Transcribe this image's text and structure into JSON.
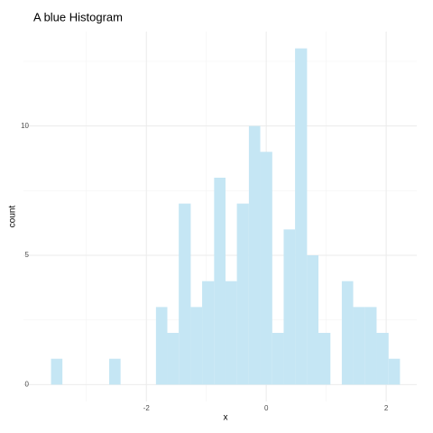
{
  "chart_data": {
    "type": "histogram",
    "title": "A blue Histogram",
    "x_label": "x",
    "y_label": "count",
    "bins": [
      -3.59,
      -3.4,
      -3.2,
      -3.01,
      -2.81,
      -2.62,
      -2.43,
      -2.23,
      -2.04,
      -1.84,
      -1.65,
      -1.46,
      -1.26,
      -1.07,
      -0.87,
      -0.68,
      -0.49,
      -0.29,
      -0.1,
      0.1,
      0.29,
      0.48,
      0.68,
      0.87,
      1.07,
      1.26,
      1.45,
      1.65,
      1.84,
      2.04,
      2.23
    ],
    "values": [
      1,
      0,
      0,
      0,
      0,
      1,
      0,
      0,
      0,
      3,
      2,
      7,
      3,
      4,
      8,
      4,
      7,
      10,
      9,
      2,
      6,
      13,
      5,
      2,
      0,
      4,
      3,
      3,
      2,
      1
    ],
    "color": "#c5e6f4",
    "xlim": [
      -4.05,
      2.51
    ],
    "ylim": [
      -0.65,
      13.65
    ],
    "xticks": [
      -2,
      0,
      2
    ],
    "yticks": [
      0,
      5,
      10
    ],
    "x_minor_ticks": [
      -3,
      -1,
      1
    ],
    "y_minor_ticks": [
      2.5,
      7.5,
      12.5
    ],
    "grid": true
  }
}
